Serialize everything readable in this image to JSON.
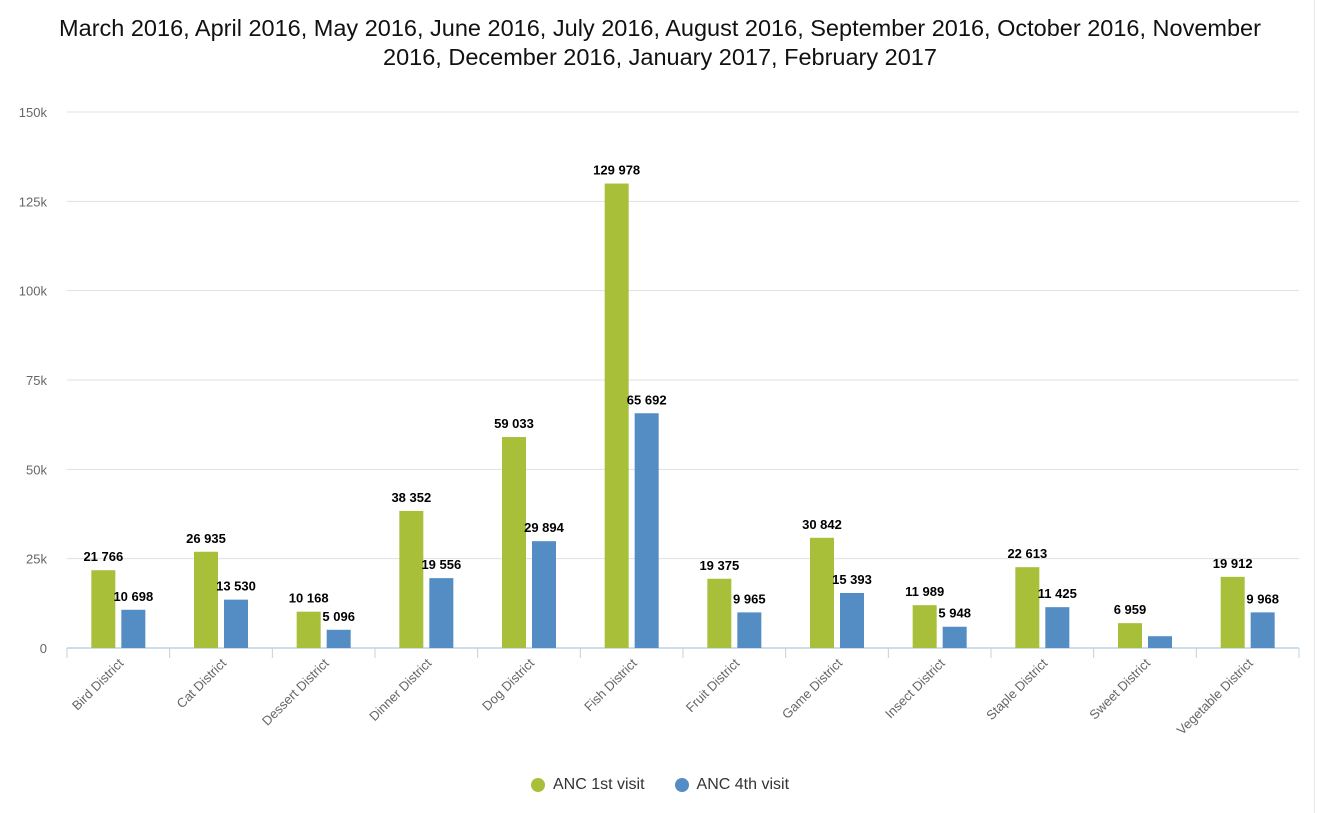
{
  "chart_data": {
    "type": "bar",
    "title": "March 2016, April 2016, May 2016, June 2016, July 2016, August 2016, September 2016, October 2016, November 2016, December 2016, January 2017, February 2017",
    "categories": [
      "Bird District",
      "Cat District",
      "Dessert District",
      "Dinner District",
      "Dog District",
      "Fish District",
      "Fruit District",
      "Game District",
      "Insect District",
      "Staple District",
      "Sweet District",
      "Vegetable District"
    ],
    "series": [
      {
        "name": "ANC 1st visit",
        "color": "#a8bf3a",
        "values": [
          21766,
          26935,
          10168,
          38352,
          59033,
          129978,
          19375,
          30842,
          11989,
          22613,
          6959,
          19912
        ],
        "labels": [
          "21 766",
          "26 935",
          "10 168",
          "38 352",
          "59 033",
          "129 978",
          "19 375",
          "30 842",
          "11 989",
          "22 613",
          "6 959",
          "19 912"
        ]
      },
      {
        "name": "ANC 4th visit",
        "color": "#548cc4",
        "values": [
          10698,
          13530,
          5096,
          19556,
          29894,
          65692,
          9965,
          15393,
          5948,
          11425,
          3300,
          9968
        ],
        "labels": [
          "10 698",
          "13 530",
          "5 096",
          "19 556",
          "29 894",
          "65 692",
          "9 965",
          "15 393",
          "5 948",
          "11 425",
          "",
          "9 968"
        ]
      }
    ],
    "yticks": [
      {
        "value": 0,
        "label": "0"
      },
      {
        "value": 25000,
        "label": "25k"
      },
      {
        "value": 50000,
        "label": "50k"
      },
      {
        "value": 75000,
        "label": "75k"
      },
      {
        "value": 100000,
        "label": "100k"
      },
      {
        "value": 125000,
        "label": "125k"
      },
      {
        "value": 150000,
        "label": "150k"
      }
    ],
    "ylim": [
      0,
      150000
    ],
    "xlabel": "",
    "ylabel": "",
    "grid": true,
    "legend_position": "bottom-center",
    "gridline_color": "#e0e0e0",
    "axis_color": "#c0d0e0"
  }
}
